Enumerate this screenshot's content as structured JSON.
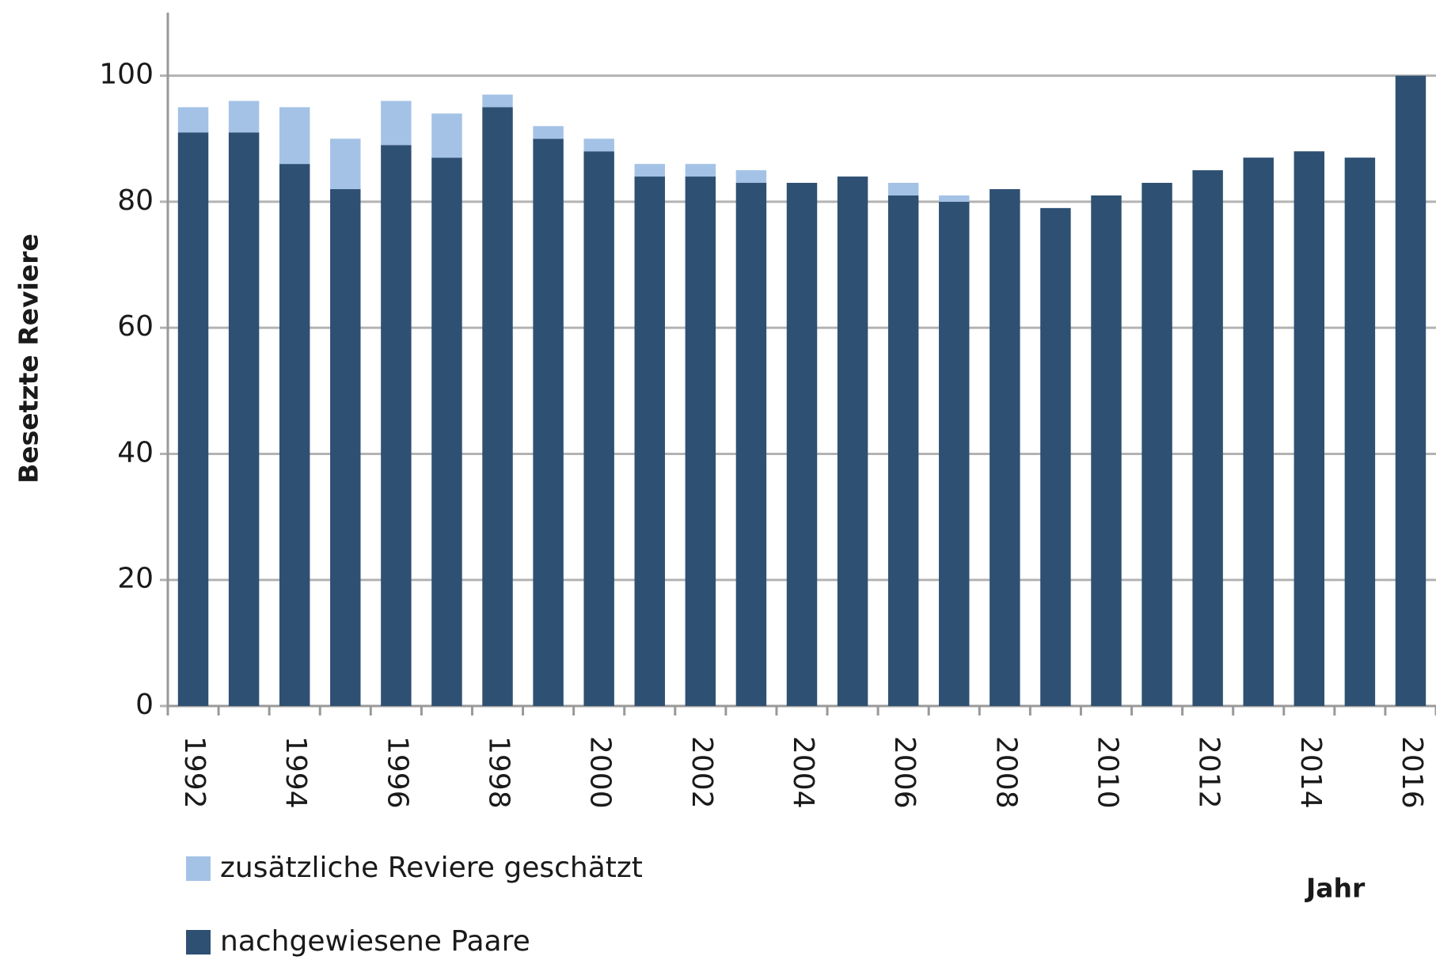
{
  "chart_data": {
    "type": "bar",
    "stacked": true,
    "y_label": "Besetzte Reviere",
    "x_label": "Jahr",
    "categories": [
      "1992",
      null,
      "1994",
      null,
      "1996",
      null,
      "1998",
      null,
      "2000",
      null,
      "2002",
      null,
      "2004",
      null,
      "2006",
      null,
      "2008",
      null,
      "2010",
      null,
      "2012",
      null,
      "2014",
      null,
      "2016"
    ],
    "series": [
      {
        "name": "nachgewiesene Paare",
        "color": "#2e5073",
        "values": [
          91,
          91,
          86,
          82,
          89,
          87,
          95,
          90,
          88,
          84,
          84,
          83,
          83,
          84,
          81,
          80,
          82,
          79,
          81,
          83,
          85,
          87,
          88,
          87,
          100
        ]
      },
      {
        "name": "zusätzliche Reviere geschätzt",
        "color": "#a4c2e6",
        "values": [
          4,
          5,
          9,
          8,
          7,
          7,
          2,
          2,
          2,
          2,
          2,
          2,
          0,
          0,
          2,
          1,
          0,
          0,
          0,
          0,
          0,
          0,
          0,
          0,
          0
        ]
      }
    ],
    "ylim": [
      0,
      110
    ],
    "yticks": [
      0,
      20,
      40,
      60,
      80,
      100
    ],
    "grid": true
  }
}
